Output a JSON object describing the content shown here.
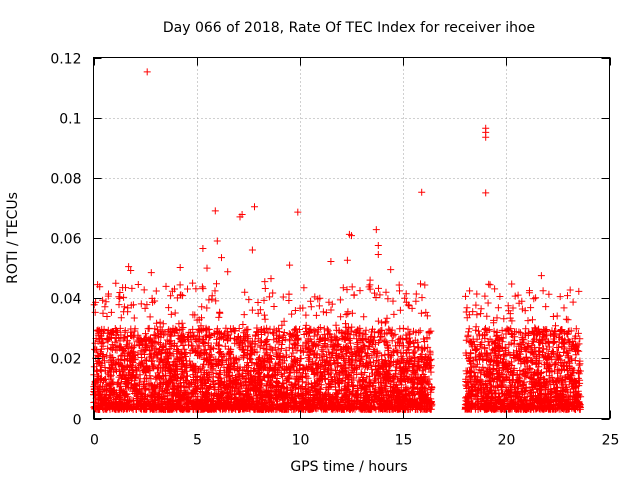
{
  "chart_data": {
    "type": "scatter",
    "title": "Day 066 of 2018, Rate Of TEC Index for receiver ihoe",
    "xlabel": "GPS time / hours",
    "ylabel": "ROTI / TECUs",
    "xlim": [
      0,
      25
    ],
    "ylim": [
      0,
      0.12
    ],
    "xticks": [
      0,
      5,
      10,
      15,
      20,
      25
    ],
    "xtick_labels": [
      "0",
      "5",
      "10",
      "15",
      "20",
      "25"
    ],
    "yticks": [
      0,
      0.02,
      0.04,
      0.06,
      0.08,
      0.1,
      0.12
    ],
    "ytick_labels": [
      "0",
      "0.02",
      "0.04",
      "0.06",
      "0.08",
      "0.1",
      "0.12"
    ],
    "grid": true,
    "marker": "+",
    "color": "#ff0000",
    "series": [
      {
        "name": "ROTI",
        "x": [
          2.6,
          19.0,
          19.0,
          19.0,
          19.0,
          15.9,
          7.8,
          5.9,
          7.2,
          7.1,
          9.9,
          12.4,
          12.5,
          13.7,
          13.8,
          2.8,
          6.2,
          7.7,
          13.8,
          5.3,
          5.5,
          6.0,
          1.7,
          1.8,
          4.2,
          4.8,
          6.5,
          9.5,
          11.5,
          12.3,
          13.4,
          14.4,
          21.7,
          0.2,
          0.3,
          8.6,
          8.3
        ],
        "values": [
          0.1152,
          0.0965,
          0.0951,
          0.0935,
          0.075,
          0.0752,
          0.0704,
          0.069,
          0.0678,
          0.067,
          0.0686,
          0.0612,
          0.0608,
          0.0628,
          0.0575,
          0.0485,
          0.0535,
          0.056,
          0.0545,
          0.0565,
          0.05,
          0.059,
          0.0505,
          0.0492,
          0.0502,
          0.045,
          0.0488,
          0.051,
          0.0522,
          0.0526,
          0.046,
          0.0495,
          0.0475,
          0.0445,
          0.0438,
          0.0465,
          0.0455
        ]
      }
    ],
    "dense_bands": [
      {
        "x_start": 0.0,
        "x_end": 16.4,
        "typical_range": [
          0.003,
          0.03
        ],
        "peak": 0.045
      },
      {
        "x_start": 18.0,
        "x_end": 23.6,
        "typical_range": [
          0.003,
          0.03
        ],
        "peak": 0.045
      }
    ]
  }
}
